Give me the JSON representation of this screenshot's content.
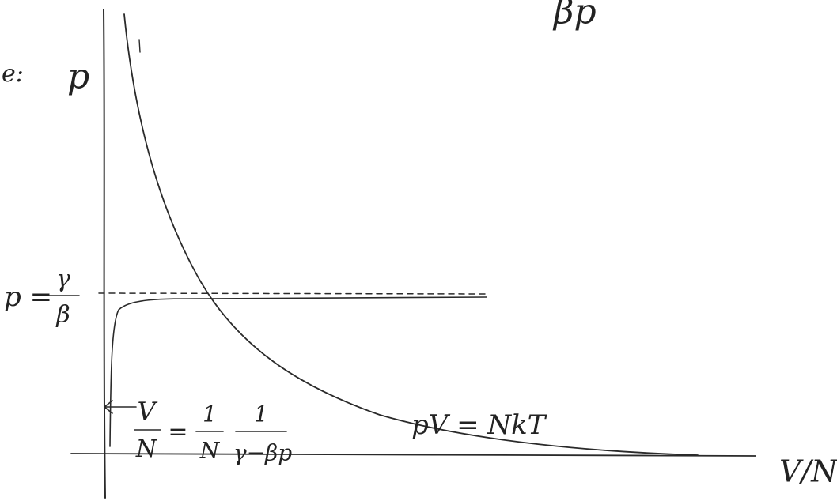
{
  "top_fragment": "βp",
  "margin_fragment": "e:",
  "y_axis_label": "p",
  "x_axis_label": "V/N",
  "asymptote_label": {
    "lhs": "p =",
    "numerator": "γ",
    "denominator": "β"
  },
  "curve_label": "pV = NkT",
  "formula": {
    "lhs_numerator": "V",
    "lhs_denominator": "N",
    "equals": "=",
    "factor1_numerator": "1",
    "factor1_denominator": "N",
    "factor2_numerator": "1",
    "factor2_denominator": "γ−βp"
  }
}
